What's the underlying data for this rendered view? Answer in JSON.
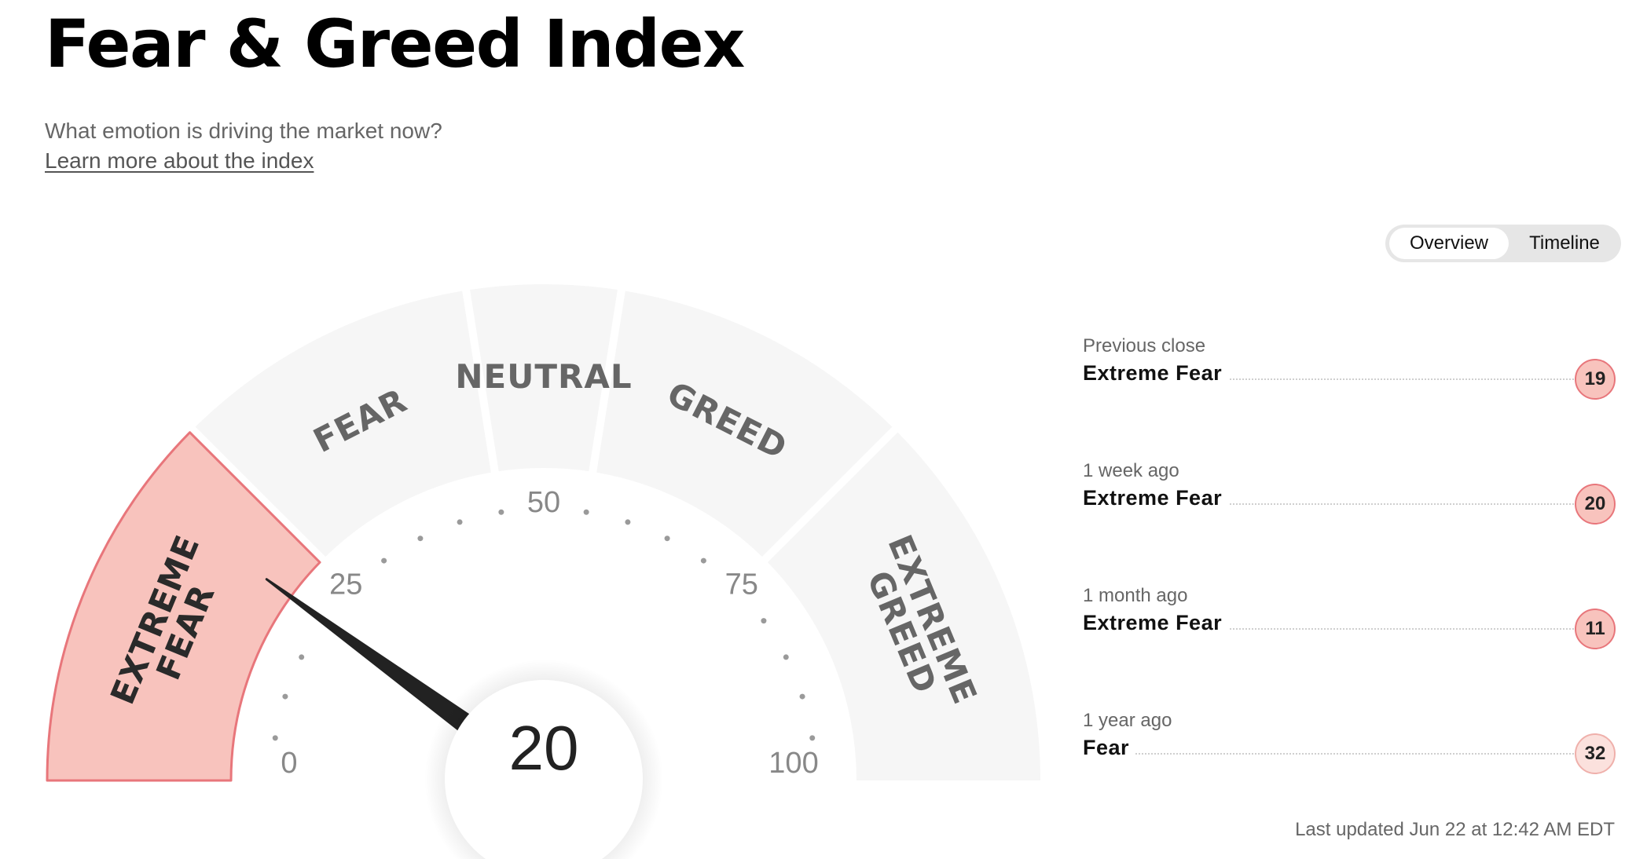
{
  "page": {
    "title": "Fear & Greed Index",
    "subtitle": "What emotion is driving the market now?",
    "learn_more": "Learn more about the index"
  },
  "view_toggle": {
    "options": [
      "Overview",
      "Timeline"
    ],
    "selected": "Overview"
  },
  "gauge": {
    "value": 20,
    "scale_min": 0,
    "scale_max": 100,
    "ticks": [
      "0",
      "25",
      "50",
      "75",
      "100"
    ],
    "active_segment": "extreme-fear",
    "segments": [
      {
        "id": "extreme-fear",
        "lines": [
          "EXTREME",
          "FEAR"
        ],
        "range": [
          0,
          25
        ]
      },
      {
        "id": "fear",
        "lines": [
          "FEAR"
        ],
        "range": [
          25,
          45
        ]
      },
      {
        "id": "neutral",
        "lines": [
          "NEUTRAL"
        ],
        "range": [
          45,
          55
        ]
      },
      {
        "id": "greed",
        "lines": [
          "GREED"
        ],
        "range": [
          55,
          75
        ]
      },
      {
        "id": "extreme-greed",
        "lines": [
          "EXTREME",
          "GREED"
        ],
        "range": [
          75,
          100
        ]
      }
    ]
  },
  "history": [
    {
      "when": "Previous close",
      "label": "Extreme Fear",
      "value": "19",
      "level": "xfear"
    },
    {
      "when": "1 week ago",
      "label": "Extreme Fear",
      "value": "20",
      "level": "xfear"
    },
    {
      "when": "1 month ago",
      "label": "Extreme Fear",
      "value": "11",
      "level": "xfear"
    },
    {
      "when": "1 year ago",
      "label": "Fear",
      "value": "32",
      "level": "fear"
    }
  ],
  "last_updated": "Last updated Jun 22 at 12:42 AM EDT",
  "colors": {
    "segment_bg": "#f6f6f6",
    "active_fill": "#f8c3bd",
    "active_stroke": "#e8767b",
    "segment_label": "#666666",
    "needle": "#222222",
    "tick_text": "#888888",
    "dot": "#9a9a9a"
  }
}
